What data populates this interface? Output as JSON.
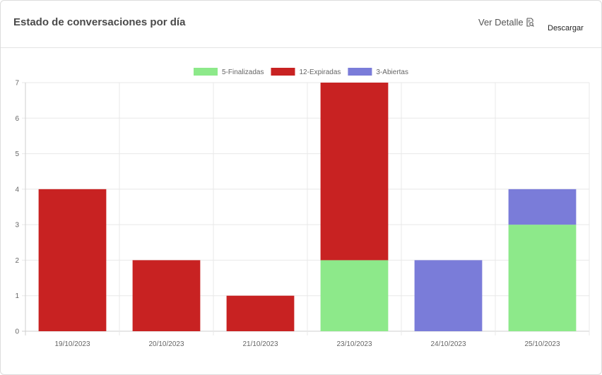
{
  "header": {
    "title": "Estado de conversaciones por día",
    "detail_label": "Ver Detalle",
    "download_label": "Descargar"
  },
  "icons": {
    "detail": "search-document-icon"
  },
  "chart_data": {
    "type": "bar",
    "stacked": true,
    "categories": [
      "19/10/2023",
      "20/10/2023",
      "21/10/2023",
      "23/10/2023",
      "24/10/2023",
      "25/10/2023"
    ],
    "series": [
      {
        "name": "5-Finalizadas",
        "color": "#8de98a",
        "values": [
          0,
          0,
          0,
          2,
          0,
          3
        ]
      },
      {
        "name": "12-Expiradas",
        "color": "#c82222",
        "values": [
          4,
          2,
          1,
          5,
          0,
          0
        ]
      },
      {
        "name": "3-Abiertas",
        "color": "#7a7cd9",
        "values": [
          0,
          0,
          0,
          0,
          2,
          1
        ]
      }
    ],
    "yticks": [
      "0",
      "1",
      "2",
      "3",
      "4",
      "5",
      "6",
      "7"
    ],
    "ylim": [
      0,
      7
    ],
    "grid": true,
    "legend": "top-center"
  }
}
